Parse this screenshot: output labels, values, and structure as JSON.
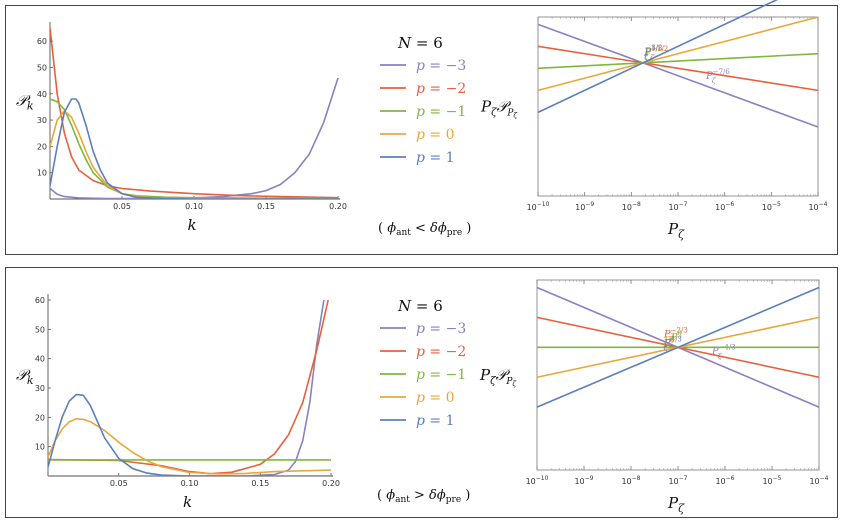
{
  "colors": {
    "p_m3": "#8e7fc1",
    "p_m2": "#e8603c",
    "p_m1": "#7fb83d",
    "p_0": "#e8a838",
    "p_1": "#5b7fbf"
  },
  "panels": [
    {
      "id": "top",
      "legend": {
        "title": "N = 6",
        "entries": [
          {
            "label": "p = −3",
            "color_key": "p_m3"
          },
          {
            "label": "p = −2",
            "color_key": "p_m2"
          },
          {
            "label": "p = −1",
            "color_key": "p_m1"
          },
          {
            "label": "p = 0",
            "color_key": "p_0"
          },
          {
            "label": "p = 1",
            "color_key": "p_1"
          }
        ]
      },
      "condition": "( ϕant < δϕpre )",
      "condition_parts": {
        "phi": "ϕ",
        "ant": "ant",
        "rel": "<",
        "delta_phi": "δϕ",
        "pre": "pre"
      }
    },
    {
      "id": "bottom",
      "legend": {
        "title": "N = 6",
        "entries": [
          {
            "label": "p = −3",
            "color_key": "p_m3"
          },
          {
            "label": "p = −2",
            "color_key": "p_m2"
          },
          {
            "label": "p = −1",
            "color_key": "p_m1"
          },
          {
            "label": "p = 0",
            "color_key": "p_0"
          },
          {
            "label": "p = 1",
            "color_key": "p_1"
          }
        ]
      },
      "condition": "( ϕant > δϕpre )",
      "condition_parts": {
        "phi": "ϕ",
        "ant": "ant",
        "rel": ">",
        "delta_phi": "δϕ",
        "pre": "pre"
      }
    }
  ],
  "chart_data": [
    {
      "id": "top-left",
      "type": "line",
      "title": "",
      "xlabel": "k",
      "ylabel": "𝒫k",
      "ylabel_main": "𝒫",
      "ylabel_sub": "k",
      "xlim": [
        0.0,
        0.2
      ],
      "ylim": [
        0,
        65
      ],
      "xticks": [
        0.05,
        0.1,
        0.15,
        0.2
      ],
      "xtick_labels": [
        "0.05",
        "0.10",
        "0.15",
        "0.20"
      ],
      "yticks": [
        10,
        20,
        30,
        40,
        50,
        60
      ],
      "ytick_labels": [
        "10",
        "20",
        "30",
        "40",
        "50",
        "60"
      ],
      "series": [
        {
          "name": "p = −3",
          "color_key": "p_m3",
          "x": [
            0.0,
            0.005,
            0.01,
            0.02,
            0.04,
            0.06,
            0.08,
            0.1,
            0.12,
            0.14,
            0.15,
            0.16,
            0.17,
            0.18,
            0.19,
            0.2
          ],
          "y": [
            4,
            1.8,
            0.9,
            0.4,
            0.2,
            0.2,
            0.2,
            0.4,
            0.9,
            2,
            3.2,
            5.5,
            10,
            17,
            29,
            46
          ]
        },
        {
          "name": "p = −2",
          "color_key": "p_m2",
          "x": [
            0.0,
            0.005,
            0.01,
            0.015,
            0.02,
            0.03,
            0.04,
            0.05,
            0.07,
            0.1,
            0.13,
            0.16,
            0.2
          ],
          "y": [
            65,
            40,
            25,
            16,
            11,
            7,
            5,
            4,
            3,
            2,
            1.3,
            0.9,
            0.5
          ]
        },
        {
          "name": "p = −1",
          "color_key": "p_m1",
          "x": [
            0.0,
            0.005,
            0.01,
            0.015,
            0.02,
            0.025,
            0.03,
            0.04,
            0.05,
            0.06,
            0.08,
            0.1,
            0.15,
            0.2
          ],
          "y": [
            38,
            37,
            34,
            28,
            21,
            15,
            10,
            4.5,
            2,
            1.2,
            0.7,
            0.5,
            0.3,
            0.2
          ]
        },
        {
          "name": "p = 0",
          "color_key": "p_0",
          "x": [
            0.0,
            0.005,
            0.01,
            0.015,
            0.02,
            0.025,
            0.03,
            0.04,
            0.05,
            0.06,
            0.08,
            0.1,
            0.15,
            0.2
          ],
          "y": [
            20,
            30,
            33.5,
            31,
            25,
            18,
            12,
            5,
            2,
            0.8,
            0.2,
            0.1,
            0,
            0
          ]
        },
        {
          "name": "p = 1",
          "color_key": "p_1",
          "x": [
            0.0,
            0.005,
            0.01,
            0.015,
            0.018,
            0.02,
            0.025,
            0.03,
            0.035,
            0.04,
            0.05,
            0.06,
            0.08,
            0.1,
            0.15,
            0.2
          ],
          "y": [
            5,
            20,
            33,
            38,
            38,
            36.5,
            28,
            18,
            11,
            6,
            2,
            0.6,
            0.1,
            0,
            0,
            0
          ]
        }
      ]
    },
    {
      "id": "top-right",
      "type": "line",
      "title": "",
      "xlabel": "Pζ",
      "ylabel": "PζPPζ",
      "xscale": "log",
      "yscale": "log",
      "xlim_exp": [
        -10,
        -4
      ],
      "xticks_exp": [
        -10,
        -9,
        -8,
        -7,
        -6,
        -5,
        -4
      ],
      "xtick_base": "10",
      "xtick_labels": [
        "10−10",
        "10−9",
        "10−8",
        "10−7",
        "10−6",
        "10−5",
        "10−4"
      ],
      "ylim_exp": [
        -9.7,
        2.5
      ],
      "series": [
        {
          "name": "p = −3",
          "color_key": "p_m3",
          "label": "Pζ−7/6",
          "label_base": "P",
          "label_sub": "ζ",
          "label_sup": "−7/6",
          "label_pos": 0.6,
          "intercept_exp": -9.666667,
          "slope": -1.166667
        },
        {
          "name": "p = −2",
          "color_key": "p_m2",
          "label": "Pζ−1/2",
          "label_base": "P",
          "label_sub": "ζ",
          "label_sup": "−1/2",
          "label_pos": 0.38,
          "intercept_exp": -4.5,
          "slope": -0.5
        },
        {
          "name": "p = −1",
          "color_key": "p_m1",
          "label": "Pζ1/6",
          "label_base": "P",
          "label_sub": "ζ",
          "label_sup": "1/6",
          "label_pos": 0.38,
          "intercept_exp": 0.666667,
          "slope": 0.166667
        },
        {
          "name": "p = 0",
          "color_key": "p_0",
          "label": "Pζ5/6",
          "label_base": "P",
          "label_sub": "ζ",
          "label_sup": "5/6",
          "label_pos": 0.38,
          "intercept_exp": 5.833333,
          "slope": 0.833333
        },
        {
          "name": "p = 1",
          "color_key": "p_1",
          "label": "Pζ3/2",
          "label_base": "P",
          "label_sub": "ζ",
          "label_sup": "3/2",
          "label_pos": 0.38,
          "intercept_exp": 11,
          "slope": 1.5
        }
      ]
    },
    {
      "id": "bottom-left",
      "type": "line",
      "title": "",
      "xlabel": "k",
      "ylabel": "𝒫k",
      "ylabel_main": "𝒫",
      "ylabel_sub": "k",
      "xlim": [
        0.0,
        0.2
      ],
      "ylim": [
        0,
        60
      ],
      "xticks": [
        0.05,
        0.1,
        0.15,
        0.2
      ],
      "xtick_labels": [
        "0.05",
        "0.10",
        "0.15",
        "0.20"
      ],
      "yticks": [
        10,
        20,
        30,
        40,
        50,
        60
      ],
      "ytick_labels": [
        "10",
        "20",
        "30",
        "40",
        "50",
        "60"
      ],
      "series": [
        {
          "name": "p = −3",
          "color_key": "p_m3",
          "x": [
            0.0,
            0.02,
            0.05,
            0.08,
            0.1,
            0.12,
            0.14,
            0.16,
            0.17,
            0.175,
            0.18,
            0.185,
            0.19,
            0.195
          ],
          "y": [
            0,
            0,
            0,
            0,
            0,
            0,
            0,
            0.5,
            2,
            5,
            12,
            25,
            45,
            60
          ]
        },
        {
          "name": "p = −2",
          "color_key": "p_m2",
          "x": [
            0.0,
            0.05,
            0.08,
            0.1,
            0.115,
            0.13,
            0.15,
            0.16,
            0.17,
            0.18,
            0.19,
            0.198
          ],
          "y": [
            5.6,
            5.3,
            3.5,
            1.5,
            0.8,
            1.3,
            4,
            7.5,
            14,
            25,
            43,
            60
          ]
        },
        {
          "name": "p = −1",
          "color_key": "p_m1",
          "x": [
            0.0,
            0.2
          ],
          "y": [
            5.5,
            5.5
          ]
        },
        {
          "name": "p = 0",
          "color_key": "p_0",
          "x": [
            0.0,
            0.005,
            0.01,
            0.015,
            0.02,
            0.025,
            0.03,
            0.04,
            0.05,
            0.06,
            0.07,
            0.08,
            0.1,
            0.12,
            0.14,
            0.16,
            0.2
          ],
          "y": [
            6.5,
            12,
            16,
            18.5,
            19.5,
            19.3,
            18.5,
            15.5,
            11.5,
            8,
            5.2,
            3.2,
            1.2,
            0.7,
            0.9,
            1.5,
            2
          ]
        },
        {
          "name": "p = 1",
          "color_key": "p_1",
          "x": [
            0.0,
            0.005,
            0.01,
            0.015,
            0.02,
            0.025,
            0.03,
            0.035,
            0.04,
            0.05,
            0.06,
            0.07,
            0.08,
            0.1,
            0.15,
            0.2
          ],
          "y": [
            3,
            12,
            20,
            25.5,
            27.8,
            27.5,
            24,
            18.5,
            13,
            6,
            2.5,
            1,
            0.3,
            0,
            0,
            0
          ]
        }
      ]
    },
    {
      "id": "bottom-right",
      "type": "line",
      "title": "",
      "xlabel": "Pζ",
      "ylabel": "PζPPζ",
      "xscale": "log",
      "yscale": "log",
      "xlim_exp": [
        -10,
        -4
      ],
      "xticks_exp": [
        -10,
        -9,
        -8,
        -7,
        -6,
        -5,
        -4
      ],
      "xtick_base": "10",
      "xtick_labels": [
        "10−10",
        "10−9",
        "10−8",
        "10−7",
        "10−6",
        "10−5",
        "10−4"
      ],
      "ylim_exp": [
        -8.2,
        4.5
      ],
      "series": [
        {
          "name": "p = −3",
          "color_key": "p_m3",
          "label": "Pζ−4/3",
          "label_base": "P",
          "label_sub": "ζ",
          "label_sup": "−4/3",
          "label_pos": 0.62,
          "intercept_exp": -9.333333,
          "slope": -1.333333
        },
        {
          "name": "p = −2",
          "color_key": "p_m2",
          "label": "Pζ−2/3",
          "label_base": "P",
          "label_sub": "ζ",
          "label_sup": "−2/3",
          "label_pos": 0.45,
          "intercept_exp": -4.666667,
          "slope": -0.666667
        },
        {
          "name": "p = −1",
          "color_key": "p_m1",
          "label": "Pζ0",
          "label_base": "P",
          "label_sub": "ζ",
          "label_sup": "0",
          "label_pos": 0.45,
          "intercept_exp": 0,
          "slope": 0
        },
        {
          "name": "p = 0",
          "color_key": "p_0",
          "label": "Pζ2/3",
          "label_base": "P",
          "label_sub": "ζ",
          "label_sup": "2/3",
          "label_pos": 0.45,
          "intercept_exp": 4.666667,
          "slope": 0.666667
        },
        {
          "name": "p = 1",
          "color_key": "p_1",
          "label": "Pζ4/3",
          "label_base": "P",
          "label_sub": "ζ",
          "label_sup": "4/3",
          "label_pos": 0.45,
          "intercept_exp": 9.333333,
          "slope": 1.333333
        }
      ]
    }
  ]
}
